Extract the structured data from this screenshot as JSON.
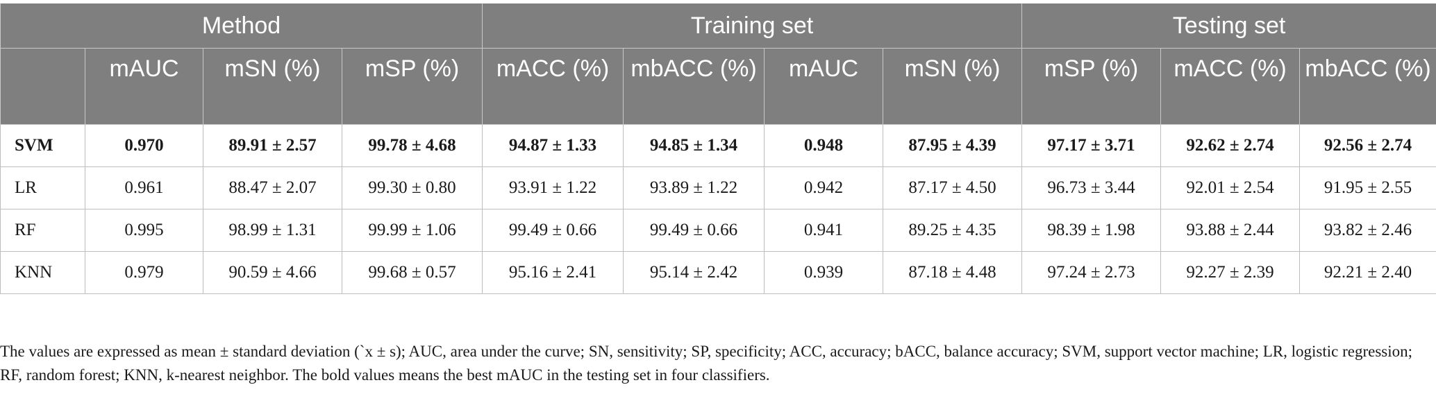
{
  "table": {
    "group_headers": [
      "Method",
      "Training set",
      "Testing set"
    ],
    "sub_headers": [
      "",
      "mAUC",
      "mSN (%)",
      "mSP (%)",
      "mACC (%)",
      "mbACC (%)",
      "mAUC",
      "mSN (%)",
      "mSP (%)",
      "mACC (%)",
      "mbACC (%)"
    ],
    "rows": [
      {
        "cells": [
          "SVM",
          "0.970",
          "89.91 ± 2.57",
          "99.78 ± 4.68",
          "94.87 ± 1.33",
          "94.85 ± 1.34",
          "0.948",
          "87.95 ± 4.39",
          "97.17 ± 3.71",
          "92.62 ± 2.74",
          "92.56 ± 2.74"
        ],
        "bold": true
      },
      {
        "cells": [
          "LR",
          "0.961",
          "88.47 ± 2.07",
          "99.30 ± 0.80",
          "93.91 ± 1.22",
          "93.89 ± 1.22",
          "0.942",
          "87.17 ± 4.50",
          "96.73 ± 3.44",
          "92.01 ± 2.54",
          "91.95 ± 2.55"
        ],
        "bold": false
      },
      {
        "cells": [
          "RF",
          "0.995",
          "98.99 ± 1.31",
          "99.99 ± 1.06",
          "99.49 ± 0.66",
          "99.49 ± 0.66",
          "0.941",
          "89.25 ± 4.35",
          "98.39 ± 1.98",
          "93.88 ± 2.44",
          "93.82 ± 2.46"
        ],
        "bold": false
      },
      {
        "cells": [
          "KNN",
          "0.979",
          "90.59 ± 4.66",
          "99.68 ± 0.57",
          "95.16 ± 2.41",
          "95.14 ± 2.42",
          "0.939",
          "87.18 ± 4.48",
          "97.24 ± 2.73",
          "92.27 ± 2.39",
          "92.21 ± 2.40"
        ],
        "bold": false
      }
    ],
    "footnote": "The values are expressed as mean ± standard deviation (`x ± s); AUC, area under the curve; SN, sensitivity; SP, specificity; ACC, accuracy; bACC, balance accuracy; SVM, support vector machine; LR, logistic regression; RF, random forest; KNN, k-nearest neighbor. The bold values means the best mAUC in the testing set in four classifiers."
  },
  "colors": {
    "header_background": "#7f7f7f",
    "header_text": "#ffffff",
    "grid_line": "#bdbdbd"
  }
}
